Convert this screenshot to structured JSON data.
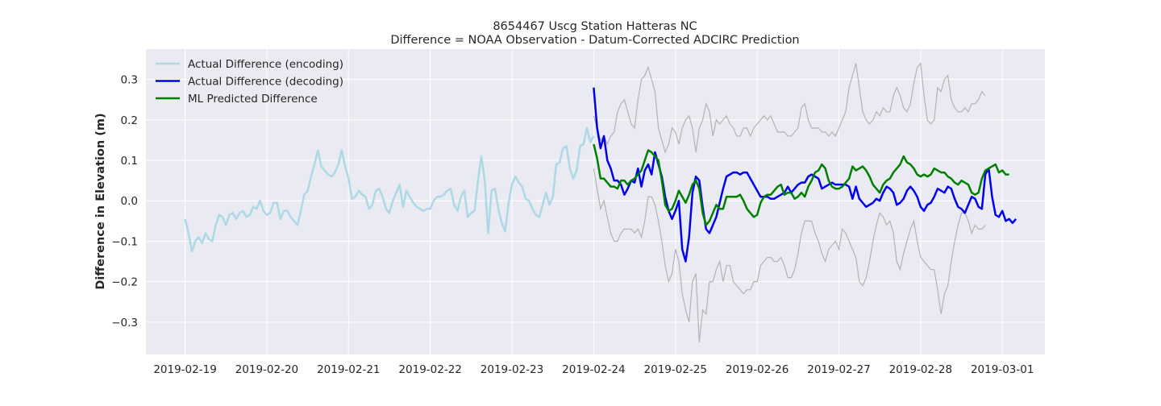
{
  "chart_data": {
    "type": "line",
    "title": "8654467 Uscg Station Hatteras NC",
    "subtitle": "Difference = NOAA Observation - Datum-Corrected ADCIRC Prediction",
    "xlabel": "",
    "ylabel": "Difference in Elevation (m)",
    "xlim": [
      "2019-02-18T12:30",
      "2019-03-01T12:30"
    ],
    "ylim": [
      -0.38,
      0.375
    ],
    "x_ticks": [
      "2019-02-19",
      "2019-02-20",
      "2019-02-21",
      "2019-02-22",
      "2019-02-23",
      "2019-02-24",
      "2019-02-25",
      "2019-02-26",
      "2019-02-27",
      "2019-02-28",
      "2019-03-01"
    ],
    "y_ticks": [
      -0.3,
      -0.2,
      -0.1,
      0.0,
      0.1,
      0.2,
      0.3
    ],
    "y_tick_labels": [
      "−0.3",
      "−0.2",
      "−0.1",
      "0.0",
      "0.1",
      "0.2",
      "0.3"
    ],
    "grid": true,
    "legend_position": "top-left",
    "colors": {
      "plot_bg": "#eaeaf2",
      "grid": "#ffffff",
      "encoding": "#add8e6",
      "decoding": "#0000ee",
      "ml": "#008000",
      "band": "#b3b3b3"
    },
    "legend": [
      {
        "label": "Actual Difference (encoding)",
        "series": "encoding"
      },
      {
        "label": "Actual Difference (decoding)",
        "series": "decoding"
      },
      {
        "label": "ML Predicted Difference",
        "series": "ml"
      }
    ],
    "series": [
      {
        "name": "Actual Difference (encoding)",
        "key": "encoding",
        "x_start": "2019-02-19T00:00",
        "x_step_hours": 1,
        "values": [
          -0.045,
          -0.08,
          -0.125,
          -0.1,
          -0.09,
          -0.105,
          -0.08,
          -0.095,
          -0.1,
          -0.06,
          -0.035,
          -0.04,
          -0.06,
          -0.035,
          -0.03,
          -0.045,
          -0.03,
          -0.025,
          -0.04,
          -0.035,
          -0.015,
          -0.02,
          0.0,
          -0.025,
          -0.035,
          -0.03,
          -0.005,
          -0.005,
          -0.045,
          -0.025,
          -0.025,
          -0.04,
          -0.05,
          -0.06,
          -0.025,
          0.015,
          0.025,
          0.06,
          0.09,
          0.125,
          0.085,
          0.075,
          0.065,
          0.06,
          0.07,
          0.09,
          0.125,
          0.085,
          0.055,
          0.005,
          0.01,
          0.025,
          0.015,
          0.01,
          -0.02,
          -0.01,
          0.025,
          0.03,
          0.01,
          -0.02,
          -0.03,
          0.0,
          0.02,
          0.04,
          -0.015,
          0.025,
          0.01,
          -0.005,
          -0.015,
          -0.02,
          -0.025,
          -0.02,
          -0.02,
          0.0,
          0.01,
          0.01,
          0.015,
          0.025,
          0.03,
          -0.01,
          -0.025,
          0.01,
          0.025,
          -0.04,
          -0.03,
          -0.025,
          0.05,
          0.11,
          0.05,
          -0.08,
          0.025,
          0.03,
          -0.02,
          -0.055,
          -0.075,
          -0.005,
          0.04,
          0.06,
          0.045,
          0.035,
          0.005,
          0.0,
          -0.02,
          -0.035,
          -0.04,
          -0.01,
          0.02,
          -0.01,
          0.01,
          0.09,
          0.095,
          0.13,
          0.135,
          0.08,
          0.055,
          0.075,
          0.135,
          0.14,
          0.18,
          0.145,
          0.16
        ]
      },
      {
        "name": "Actual Difference (decoding)",
        "key": "decoding",
        "x_start": "2019-02-24T00:00",
        "x_step_hours": 1,
        "values": [
          0.28,
          0.18,
          0.13,
          0.16,
          0.1,
          0.08,
          0.05,
          0.05,
          0.04,
          0.015,
          0.03,
          0.05,
          0.045,
          0.08,
          0.035,
          0.075,
          0.09,
          0.065,
          0.12,
          0.09,
          0.06,
          0.01,
          -0.025,
          -0.045,
          -0.025,
          0.0,
          -0.12,
          -0.15,
          -0.09,
          0.02,
          0.06,
          0.05,
          -0.015,
          -0.07,
          -0.08,
          -0.06,
          -0.04,
          -0.005,
          0.03,
          0.06,
          0.065,
          0.07,
          0.07,
          0.065,
          0.07,
          0.07,
          0.055,
          0.04,
          0.025,
          0.01,
          0.01,
          0.01,
          0.005,
          0.005,
          0.01,
          0.015,
          0.02,
          0.035,
          0.02,
          0.03,
          0.04,
          0.045,
          0.045,
          0.06,
          0.065,
          0.06,
          0.055,
          0.03,
          0.035,
          0.04,
          0.045,
          0.04,
          0.04,
          0.04,
          0.04,
          0.035,
          0.005,
          0.035,
          0.005,
          -0.005,
          -0.015,
          -0.01,
          -0.005,
          0.005,
          0.0,
          0.02,
          0.035,
          0.03,
          0.02,
          -0.01,
          -0.005,
          0.005,
          0.025,
          0.035,
          0.025,
          0.01,
          -0.015,
          -0.025,
          -0.01,
          -0.005,
          0.01,
          0.03,
          0.025,
          0.02,
          0.035,
          0.03,
          0.005,
          -0.015,
          -0.02,
          -0.03,
          -0.01,
          0.01,
          0.005,
          -0.015,
          -0.02,
          0.065,
          0.08,
          0.01,
          -0.035,
          -0.04,
          -0.025,
          -0.05,
          -0.045,
          -0.055,
          -0.045
        ]
      },
      {
        "name": "ML Predicted Difference",
        "key": "ml",
        "x_start": "2019-02-24T00:00",
        "x_step_hours": 1,
        "values": [
          0.14,
          0.105,
          0.055,
          0.055,
          0.045,
          0.035,
          0.035,
          0.03,
          0.05,
          0.05,
          0.04,
          0.05,
          0.055,
          0.065,
          0.075,
          0.1,
          0.125,
          0.12,
          0.11,
          0.1,
          0.05,
          -0.01,
          -0.025,
          -0.02,
          0.0,
          0.025,
          0.01,
          -0.005,
          0.015,
          0.04,
          0.05,
          0.03,
          -0.03,
          -0.06,
          -0.05,
          -0.03,
          -0.01,
          -0.02,
          -0.02,
          0.01,
          0.01,
          0.01,
          0.01,
          0.015,
          0.0,
          -0.02,
          -0.03,
          -0.04,
          -0.035,
          -0.005,
          0.01,
          0.015,
          0.015,
          0.025,
          0.035,
          0.04,
          0.015,
          0.02,
          0.02,
          0.005,
          0.01,
          0.02,
          0.01,
          0.035,
          0.05,
          0.07,
          0.075,
          0.09,
          0.08,
          0.05,
          0.035,
          0.03,
          0.03,
          0.035,
          0.045,
          0.055,
          0.085,
          0.075,
          0.08,
          0.085,
          0.075,
          0.06,
          0.04,
          0.03,
          0.02,
          0.04,
          0.05,
          0.055,
          0.07,
          0.08,
          0.09,
          0.11,
          0.095,
          0.09,
          0.08,
          0.065,
          0.06,
          0.065,
          0.06,
          0.065,
          0.08,
          0.075,
          0.07,
          0.07,
          0.06,
          0.055,
          0.045,
          0.04,
          0.05,
          0.045,
          0.04,
          0.02,
          0.015,
          0.02,
          0.055,
          0.075,
          0.08,
          0.085,
          0.09,
          0.07,
          0.075,
          0.065,
          0.065
        ]
      },
      {
        "name": "",
        "key": "band_upper",
        "x_start": "2019-02-24T00:00",
        "x_step_hours": 1,
        "values": [
          0.21,
          0.18,
          0.15,
          0.16,
          0.14,
          0.16,
          0.17,
          0.22,
          0.24,
          0.25,
          0.22,
          0.19,
          0.18,
          0.25,
          0.3,
          0.31,
          0.33,
          0.3,
          0.27,
          0.18,
          0.15,
          0.12,
          0.14,
          0.18,
          0.17,
          0.14,
          0.18,
          0.2,
          0.21,
          0.18,
          0.12,
          0.18,
          0.2,
          0.24,
          0.22,
          0.16,
          0.2,
          0.19,
          0.2,
          0.21,
          0.19,
          0.18,
          0.16,
          0.16,
          0.18,
          0.18,
          0.16,
          0.18,
          0.19,
          0.2,
          0.21,
          0.2,
          0.21,
          0.19,
          0.17,
          0.17,
          0.17,
          0.16,
          0.16,
          0.17,
          0.18,
          0.23,
          0.24,
          0.2,
          0.18,
          0.18,
          0.18,
          0.17,
          0.17,
          0.16,
          0.17,
          0.16,
          0.18,
          0.2,
          0.22,
          0.28,
          0.31,
          0.34,
          0.28,
          0.22,
          0.2,
          0.19,
          0.2,
          0.22,
          0.21,
          0.23,
          0.22,
          0.22,
          0.26,
          0.28,
          0.26,
          0.23,
          0.22,
          0.24,
          0.29,
          0.33,
          0.34,
          0.26,
          0.2,
          0.19,
          0.2,
          0.28,
          0.27,
          0.3,
          0.31,
          0.25,
          0.23,
          0.22,
          0.22,
          0.23,
          0.22,
          0.24,
          0.24,
          0.25,
          0.27,
          0.26
        ]
      },
      {
        "name": "",
        "key": "band_lower",
        "x_start": "2019-02-24T00:00",
        "x_step_hours": 1,
        "values": [
          0.08,
          0.03,
          -0.02,
          0.0,
          -0.04,
          -0.08,
          -0.1,
          -0.1,
          -0.08,
          -0.07,
          -0.07,
          -0.07,
          -0.08,
          -0.07,
          -0.09,
          -0.05,
          0.01,
          0.01,
          -0.01,
          -0.05,
          -0.1,
          -0.16,
          -0.2,
          -0.18,
          -0.12,
          -0.15,
          -0.23,
          -0.27,
          -0.3,
          -0.2,
          -0.18,
          -0.35,
          -0.27,
          -0.28,
          -0.2,
          -0.2,
          -0.17,
          -0.15,
          -0.2,
          -0.16,
          -0.16,
          -0.2,
          -0.21,
          -0.22,
          -0.23,
          -0.22,
          -0.22,
          -0.2,
          -0.2,
          -0.16,
          -0.15,
          -0.14,
          -0.14,
          -0.15,
          -0.15,
          -0.14,
          -0.16,
          -0.19,
          -0.19,
          -0.17,
          -0.13,
          -0.08,
          -0.05,
          -0.05,
          -0.05,
          -0.08,
          -0.1,
          -0.13,
          -0.15,
          -0.12,
          -0.11,
          -0.1,
          -0.12,
          -0.07,
          -0.08,
          -0.1,
          -0.12,
          -0.14,
          -0.2,
          -0.21,
          -0.19,
          -0.15,
          -0.1,
          -0.06,
          -0.03,
          -0.04,
          -0.06,
          -0.05,
          -0.08,
          -0.15,
          -0.17,
          -0.13,
          -0.1,
          -0.07,
          -0.05,
          -0.1,
          -0.14,
          -0.15,
          -0.16,
          -0.17,
          -0.17,
          -0.22,
          -0.28,
          -0.23,
          -0.21,
          -0.15,
          -0.1,
          -0.06,
          -0.03,
          -0.03,
          -0.05,
          -0.08,
          -0.06,
          -0.07,
          -0.07,
          -0.06
        ]
      }
    ]
  }
}
